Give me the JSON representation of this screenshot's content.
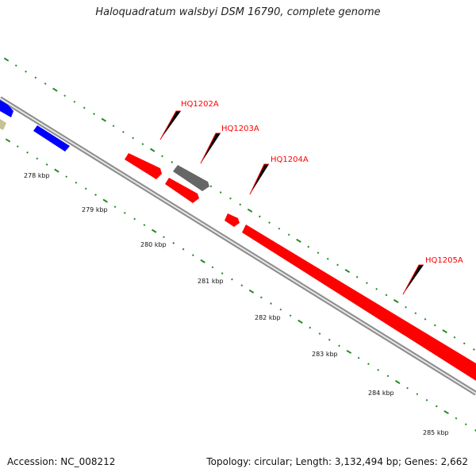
{
  "title": "Haloquadratum walsbyi DSM 16790, complete genome",
  "accession": "Accession: NC_008212",
  "info": "Topology: circular; Length: 3,132,494 bp; Genes: 2,662",
  "colors": {
    "forward_gene": "#ff0000",
    "reverse_gene": "#0000ff",
    "gray_gene": "#666666",
    "khaki_gene": "#c8c096",
    "backbone": "#8c8c8c",
    "tick": "#228b22",
    "gene_label": "#ff0000"
  },
  "scale": {
    "labels": [
      "278 kbp",
      "279 kbp",
      "280 kbp",
      "281 kbp",
      "282 kbp",
      "283 kbp",
      "284 kbp",
      "285 kbp"
    ]
  },
  "gene_labels": [
    {
      "name": "HQ1202A"
    },
    {
      "name": "HQ1203A"
    },
    {
      "name": "HQ1204A"
    },
    {
      "name": "HQ1205A"
    }
  ]
}
